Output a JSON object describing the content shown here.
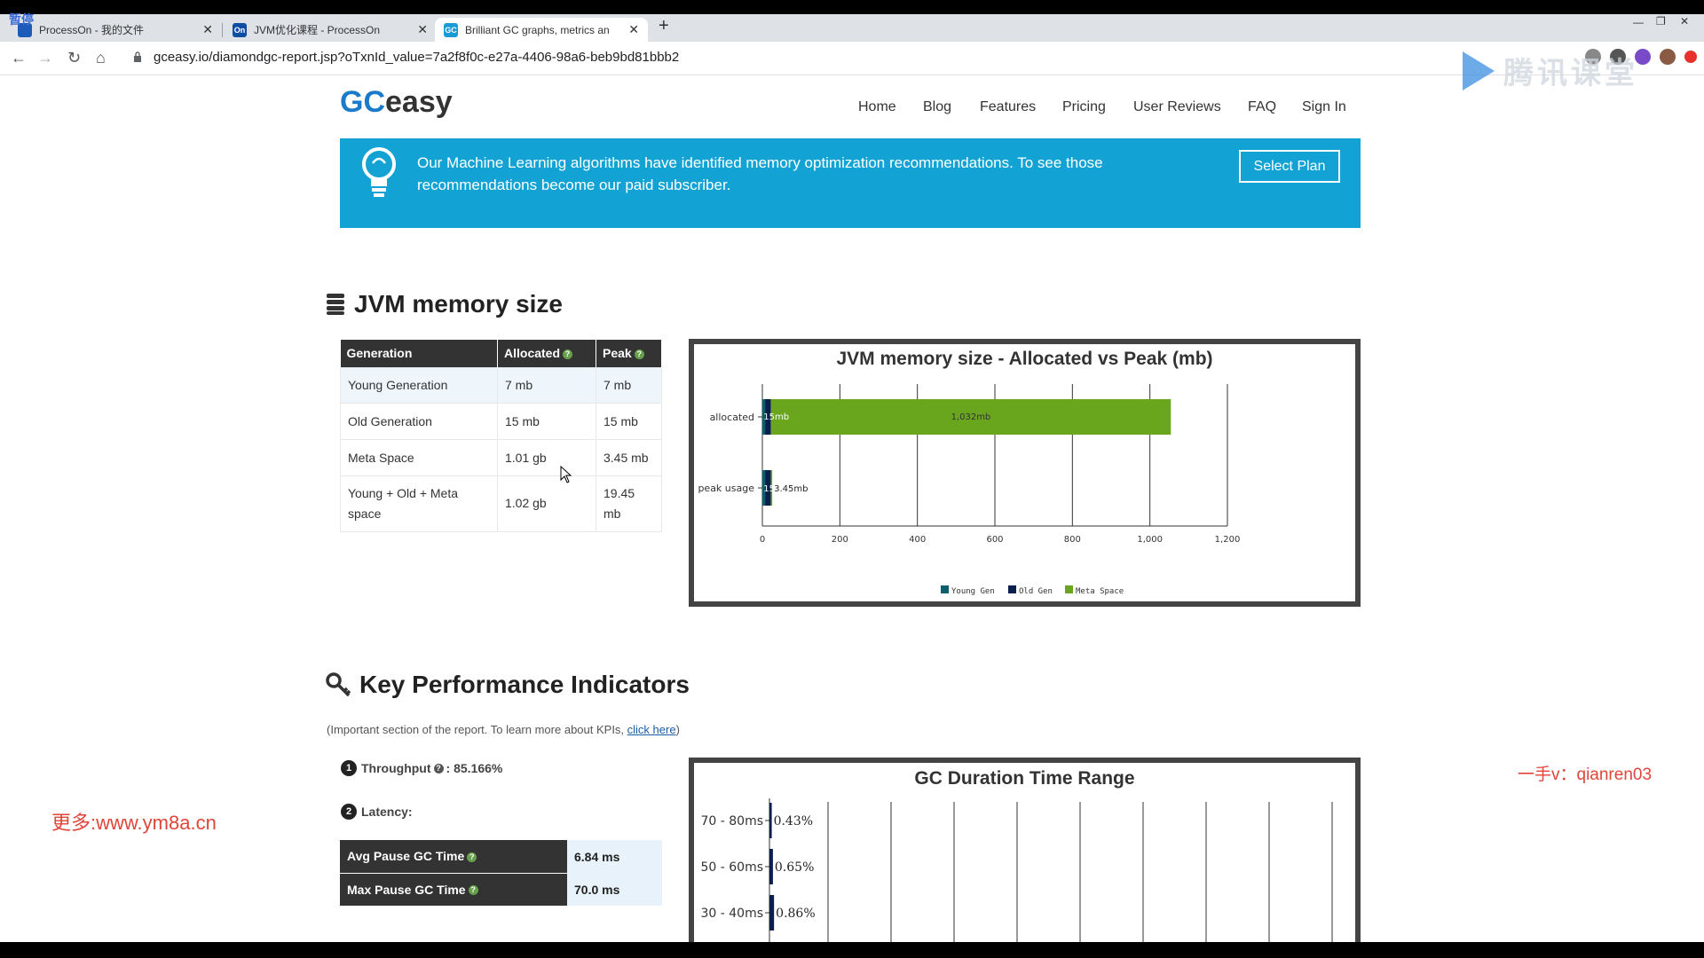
{
  "browser": {
    "tabs": [
      {
        "title": "ProcessOn - 我的文件",
        "favicon": "processon-icon",
        "active": false
      },
      {
        "title": "JVM优化课程 - ProcessOn",
        "favicon": "On",
        "active": false
      },
      {
        "title": "Brilliant GC graphs, metrics an",
        "favicon": "GC",
        "active": true
      }
    ],
    "url": "gceasy.io/diamondgc-report.jsp?oTxnId_value=7a2f8f0c-e27a-4406-98a6-beb9bd81bbb2",
    "corner_tag": "暂停",
    "watermark_logo_text": "腾讯课堂"
  },
  "site": {
    "logo_gc": "GC",
    "logo_easy": "easy",
    "nav": [
      "Home",
      "Blog",
      "Features",
      "Pricing",
      "User Reviews",
      "FAQ",
      "Sign In"
    ]
  },
  "banner": {
    "message": "Our Machine Learning algorithms have identified memory optimization recommendations. To see those recommendations become our paid subscriber.",
    "button": "Select Plan"
  },
  "memory": {
    "title": "JVM memory size",
    "headers": [
      "Generation",
      "Allocated",
      "Peak"
    ],
    "rows": [
      [
        "Young Generation",
        "7 mb",
        "7 mb"
      ],
      [
        "Old Generation",
        "15 mb",
        "15 mb"
      ],
      [
        "Meta Space",
        "1.01 gb",
        "3.45 mb"
      ],
      [
        "Young + Old + Meta space",
        "1.02 gb",
        "19.45 mb"
      ]
    ]
  },
  "kpi": {
    "title": "Key Performance Indicators",
    "subtitle_prefix": "(Important section of the report. To learn more about KPIs, ",
    "subtitle_link": "click here",
    "subtitle_suffix": ")",
    "throughput_label": "Throughput",
    "throughput_value": ": 85.166%",
    "latency_label": "Latency:",
    "latency_rows": [
      {
        "label": "Avg Pause GC Time",
        "value": "6.84 ms"
      },
      {
        "label": "Max Pause GC Time",
        "value": "70.0 ms"
      }
    ]
  },
  "watermarks": {
    "left": "更多:www.ym8a.cn",
    "right": "一手v：qianren03"
  },
  "chart_data": [
    {
      "type": "bar",
      "orientation": "horizontal",
      "stacked": true,
      "title": "JVM memory size - Allocated vs Peak (mb)",
      "categories": [
        "allocated",
        "peak usage"
      ],
      "series": [
        {
          "name": "Young Gen",
          "color": "#0e5f6e",
          "values": [
            7,
            7
          ]
        },
        {
          "name": "Old Gen",
          "color": "#0b1f4d",
          "values": [
            15,
            15
          ]
        },
        {
          "name": "Meta Space",
          "color": "#6aa51e",
          "values": [
            1032,
            3.45
          ]
        }
      ],
      "data_labels": [
        {
          "category": "allocated",
          "labels": [
            "15mb",
            "1,032mb"
          ]
        },
        {
          "category": "peak usage",
          "labels": [
            "15mb",
            "3.45mb"
          ]
        }
      ],
      "xlim": [
        0,
        1200
      ],
      "xticks": [
        "0",
        "200",
        "400",
        "600",
        "800",
        "1,000",
        "1,200"
      ],
      "grid": true,
      "legend": "bottom"
    },
    {
      "type": "bar",
      "orientation": "horizontal",
      "title": "GC Duration Time Range",
      "categories": [
        "70 - 80ms",
        "50 - 60ms",
        "30 - 40ms"
      ],
      "values": [
        0.43,
        0.65,
        0.86
      ],
      "value_labels": [
        "0.43%",
        "0.65%",
        "0.86%"
      ],
      "color": "#0b1f4d",
      "grid": true
    }
  ]
}
